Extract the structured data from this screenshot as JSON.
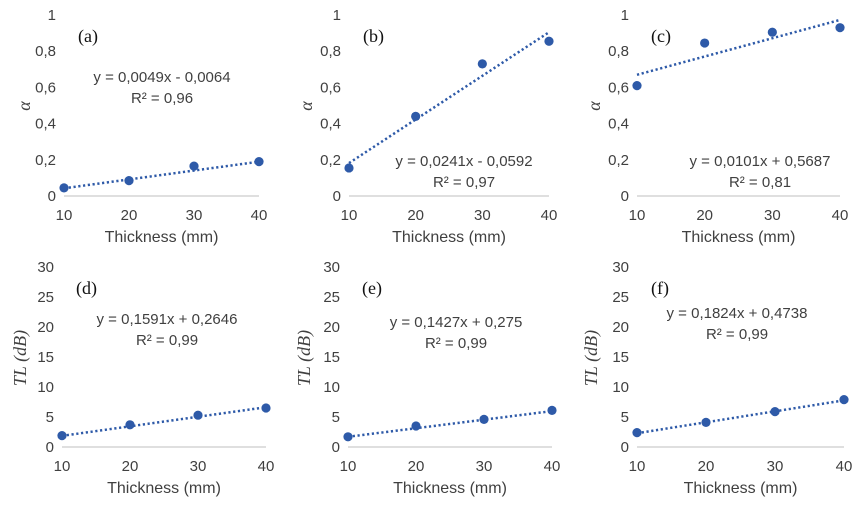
{
  "chart_data": [
    {
      "type": "scatter",
      "panel": "(a)",
      "xlabel": "Thickness (mm)",
      "ylabel": "α",
      "x": [
        10,
        20,
        30,
        40
      ],
      "y": [
        0.045,
        0.085,
        0.165,
        0.19
      ],
      "xticks": [
        "10",
        "20",
        "30",
        "40"
      ],
      "yticks": [
        "0",
        "0,2",
        "0,4",
        "0,6",
        "0,8",
        "1"
      ],
      "xlim": [
        10,
        40
      ],
      "ylim": [
        0,
        1
      ],
      "trendline": {
        "type": "linear",
        "slope": 0.0049,
        "intercept": -0.0064,
        "equation": "y = 0,0049x - 0,0064",
        "r2": "R² = 0,96"
      },
      "grid": false,
      "color": "#2e5aa8"
    },
    {
      "type": "scatter",
      "panel": "(b)",
      "xlabel": "Thickness (mm)",
      "ylabel": "α",
      "x": [
        10,
        20,
        30,
        40
      ],
      "y": [
        0.155,
        0.44,
        0.73,
        0.855
      ],
      "xticks": [
        "10",
        "20",
        "30",
        "40"
      ],
      "yticks": [
        "0",
        "0,2",
        "0,4",
        "0,6",
        "0,8",
        "1"
      ],
      "xlim": [
        10,
        40
      ],
      "ylim": [
        0,
        1
      ],
      "trendline": {
        "type": "linear",
        "slope": 0.0241,
        "intercept": -0.0592,
        "equation": "y = 0,0241x - 0,0592",
        "r2": "R² = 0,97"
      },
      "grid": false,
      "color": "#2e5aa8"
    },
    {
      "type": "scatter",
      "panel": "(c)",
      "xlabel": "Thickness (mm)",
      "ylabel": "α",
      "x": [
        10,
        20,
        30,
        40
      ],
      "y": [
        0.61,
        0.845,
        0.905,
        0.93
      ],
      "xticks": [
        "10",
        "20",
        "30",
        "40"
      ],
      "yticks": [
        "0",
        "0,2",
        "0,4",
        "0,6",
        "0,8",
        "1"
      ],
      "xlim": [
        10,
        40
      ],
      "ylim": [
        0,
        1
      ],
      "trendline": {
        "type": "linear",
        "slope": 0.0101,
        "intercept": 0.5687,
        "equation": "y = 0,0101x + 0,5687",
        "r2": "R² = 0,81"
      },
      "grid": false,
      "color": "#2e5aa8"
    },
    {
      "type": "scatter",
      "panel": "(d)",
      "xlabel": "Thickness (mm)",
      "ylabel": "TL (dB)",
      "x": [
        10,
        20,
        30,
        40
      ],
      "y": [
        1.9,
        3.7,
        5.3,
        6.5
      ],
      "xticks": [
        "10",
        "20",
        "30",
        "40"
      ],
      "yticks": [
        "0",
        "5",
        "10",
        "15",
        "20",
        "25",
        "30"
      ],
      "xlim": [
        10,
        40
      ],
      "ylim": [
        0,
        30
      ],
      "trendline": {
        "type": "linear",
        "slope": 0.1591,
        "intercept": 0.2646,
        "equation": "y = 0,1591x + 0,2646",
        "r2": "R² = 0,99"
      },
      "grid": false,
      "color": "#2e5aa8"
    },
    {
      "type": "scatter",
      "panel": "(e)",
      "xlabel": "Thickness (mm)",
      "ylabel": "TL (dB)",
      "x": [
        10,
        20,
        30,
        40
      ],
      "y": [
        1.7,
        3.5,
        4.6,
        6.1
      ],
      "xticks": [
        "10",
        "20",
        "30",
        "40"
      ],
      "yticks": [
        "0",
        "5",
        "10",
        "15",
        "20",
        "25",
        "30"
      ],
      "xlim": [
        10,
        40
      ],
      "ylim": [
        0,
        30
      ],
      "trendline": {
        "type": "linear",
        "slope": 0.1427,
        "intercept": 0.275,
        "equation": "y = 0,1427x + 0,275",
        "r2": "R² = 0,99"
      },
      "grid": false,
      "color": "#2e5aa8"
    },
    {
      "type": "scatter",
      "panel": "(f)",
      "xlabel": "Thickness (mm)",
      "ylabel": "TL (dB)",
      "x": [
        10,
        20,
        30,
        40
      ],
      "y": [
        2.4,
        4.1,
        5.9,
        7.9
      ],
      "xticks": [
        "10",
        "20",
        "30",
        "40"
      ],
      "yticks": [
        "0",
        "5",
        "10",
        "15",
        "20",
        "25",
        "30"
      ],
      "xlim": [
        10,
        40
      ],
      "ylim": [
        0,
        30
      ],
      "trendline": {
        "type": "linear",
        "slope": 0.1824,
        "intercept": 0.4738,
        "equation": "y = 0,1824x + 0,4738",
        "r2": "R² = 0,99"
      },
      "grid": false,
      "color": "#2e5aa8"
    }
  ]
}
